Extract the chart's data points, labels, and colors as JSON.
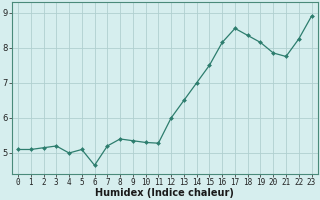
{
  "x": [
    0,
    1,
    2,
    3,
    4,
    5,
    6,
    7,
    8,
    9,
    10,
    11,
    12,
    13,
    14,
    15,
    16,
    17,
    18,
    19,
    20,
    21,
    22,
    23
  ],
  "y": [
    5.1,
    5.1,
    5.15,
    5.2,
    5.0,
    5.1,
    4.65,
    5.2,
    5.4,
    5.35,
    5.3,
    5.28,
    6.0,
    6.5,
    7.0,
    7.5,
    8.15,
    8.55,
    8.35,
    8.15,
    7.85,
    7.75,
    8.25,
    8.9
  ],
  "line_color": "#2d7d6e",
  "marker": "D",
  "marker_size": 2.0,
  "bg_color": "#d6eeee",
  "grid_color": "#b0d0d0",
  "xlabel": "Humidex (Indice chaleur)",
  "xlabel_fontsize": 7,
  "ylabel_ticks": [
    5,
    6,
    7,
    8,
    9
  ],
  "xlim": [
    -0.5,
    23.5
  ],
  "ylim": [
    4.4,
    9.3
  ],
  "tick_fontsize": 5.5,
  "spine_color": "#4a8a7a"
}
